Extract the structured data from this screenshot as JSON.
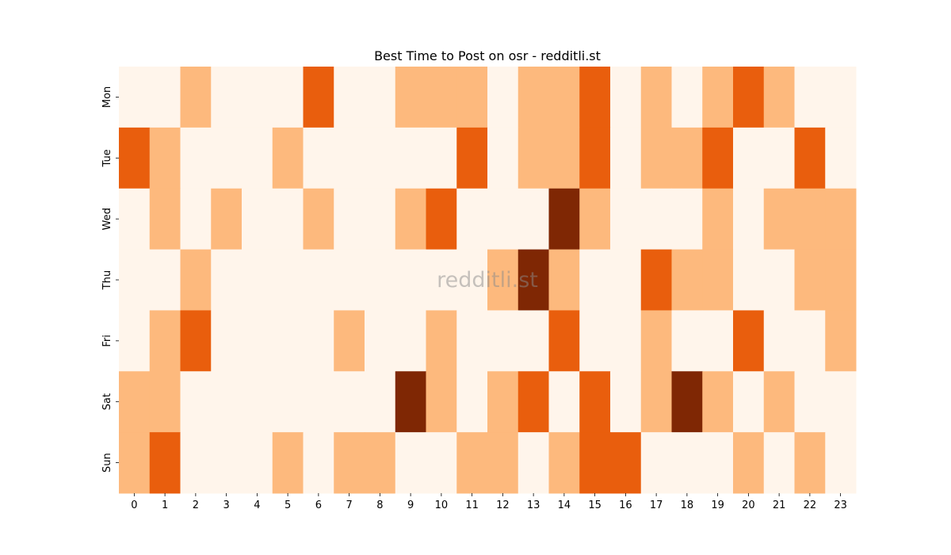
{
  "chart_data": {
    "type": "heatmap",
    "title": "Best Time to Post on osr - redditli.st",
    "watermark": "redditli.st",
    "x": [
      "0",
      "1",
      "2",
      "3",
      "4",
      "5",
      "6",
      "7",
      "8",
      "9",
      "10",
      "11",
      "12",
      "13",
      "14",
      "15",
      "16",
      "17",
      "18",
      "19",
      "20",
      "21",
      "22",
      "23"
    ],
    "y": [
      "Mon",
      "Tue",
      "Wed",
      "Thu",
      "Fri",
      "Sat",
      "Sun"
    ],
    "colormap": "Oranges",
    "colors": [
      "#fff5eb",
      "#fdb97d",
      "#e95e0d",
      "#7f2704"
    ],
    "grid": false,
    "legend": "none",
    "values": [
      [
        0,
        0,
        1,
        0,
        0,
        0,
        2,
        0,
        0,
        1,
        1,
        1,
        0,
        1,
        1,
        2,
        0,
        1,
        0,
        1,
        2,
        1,
        0,
        0
      ],
      [
        2,
        1,
        0,
        0,
        0,
        1,
        0,
        0,
        0,
        0,
        0,
        2,
        0,
        1,
        1,
        2,
        0,
        1,
        1,
        2,
        0,
        0,
        2,
        0
      ],
      [
        0,
        1,
        0,
        1,
        0,
        0,
        1,
        0,
        0,
        1,
        2,
        0,
        0,
        0,
        3,
        1,
        0,
        0,
        0,
        1,
        0,
        1,
        1,
        1
      ],
      [
        0,
        0,
        1,
        0,
        0,
        0,
        0,
        0,
        0,
        0,
        0,
        0,
        1,
        3,
        1,
        0,
        0,
        2,
        1,
        1,
        0,
        0,
        1,
        1
      ],
      [
        0,
        1,
        2,
        0,
        0,
        0,
        0,
        1,
        0,
        0,
        1,
        0,
        0,
        0,
        2,
        0,
        0,
        1,
        0,
        0,
        2,
        0,
        0,
        1
      ],
      [
        1,
        1,
        0,
        0,
        0,
        0,
        0,
        0,
        0,
        3,
        1,
        0,
        1,
        2,
        0,
        2,
        0,
        1,
        3,
        1,
        0,
        1,
        0,
        0
      ],
      [
        1,
        2,
        0,
        0,
        0,
        1,
        0,
        1,
        1,
        0,
        0,
        1,
        1,
        0,
        1,
        2,
        2,
        0,
        0,
        0,
        1,
        0,
        1,
        0
      ]
    ]
  }
}
